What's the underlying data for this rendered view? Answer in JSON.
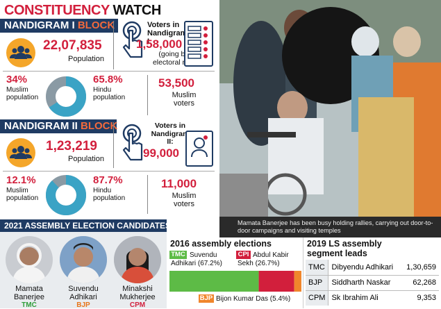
{
  "header": {
    "title_part1": "CONSTITUENCY",
    "title_part2": "WATCH"
  },
  "block1": {
    "title_part1": "NANDIGRAM I",
    "title_part2": "BLOCK",
    "population_value": "22,07,835",
    "population_label": "Population",
    "voters_heading": "Voters in Nandigram I:",
    "voters_value": "1,58,000",
    "voters_note": "(going by electoral roll)",
    "muslim_pct": "34%",
    "muslim_label": "Muslim population",
    "hindu_pct": "65.8%",
    "hindu_label": "Hindu population",
    "muslim_voters_value": "53,500",
    "muslim_voters_label": "Muslim voters",
    "hindu_share": 65.8
  },
  "block2": {
    "title_part1": "NANDIGRAM II",
    "title_part2": "BLOCK",
    "population_value": "1,23,219",
    "population_label": "Population",
    "voters_heading": "Voters in Nandigram II:",
    "voters_value": "99,000",
    "muslim_pct": "12.1%",
    "muslim_label": "Muslim population",
    "hindu_pct": "87.7%",
    "hindu_label": "Hindu population",
    "muslim_voters_value": "11,000",
    "muslim_voters_label": "Muslim voters",
    "hindu_share": 87.7
  },
  "candidates": {
    "heading": "2021 ASSEMBLY ELECTION CANDIDATES",
    "items": [
      {
        "name_line1": "Mamata",
        "name_line2": "Banerjee",
        "party": "TMC",
        "party_color": "#2f9e3a"
      },
      {
        "name_line1": "Suvendu",
        "name_line2": "Adhikari",
        "party": "BJP",
        "party_color": "#e8751a"
      },
      {
        "name_line1": "Minakshi",
        "name_line2": "Mukherjee",
        "party": "CPM",
        "party_color": "#d21f3c"
      }
    ]
  },
  "photo_caption": "Mamata Banerjee has been busy holding rallies, carrying out door-to-door campaigns and visiting temples",
  "results2016": {
    "heading": "2016 assembly elections",
    "tmc_party": "TMC",
    "tmc_candidate": "Suvendu Adhikari (67.2%)",
    "cpi_party": "CPI",
    "cpi_candidate": "Abdul Kabir Sekh (26.7%)",
    "bjp_party": "BJP",
    "bjp_candidate": "Bijon Kumar Das (5.4%)"
  },
  "chart_data": {
    "type": "bar",
    "categories": [
      "TMC",
      "CPI",
      "BJP"
    ],
    "values": [
      67.2,
      26.7,
      5.4
    ],
    "colors": [
      "#5dbb46",
      "#d21f3c",
      "#f0862c"
    ]
  },
  "ls2019": {
    "heading_line1": "2019 LS assembly",
    "heading_line2": "segment leads",
    "rows": [
      {
        "party": "TMC",
        "candidate": "Dibyendu Adhikari",
        "votes": "1,30,659"
      },
      {
        "party": "BJP",
        "candidate": "Siddharth Naskar",
        "votes": "62,268"
      },
      {
        "party": "CPM",
        "candidate": "Sk Ibrahim Ali",
        "votes": "9,353"
      }
    ]
  },
  "colors": {
    "navy": "#1f3b63",
    "red": "#d21f3c",
    "teal": "#3aa3c5",
    "grey": "#8a9aa4",
    "orange": "#f4a62a"
  }
}
